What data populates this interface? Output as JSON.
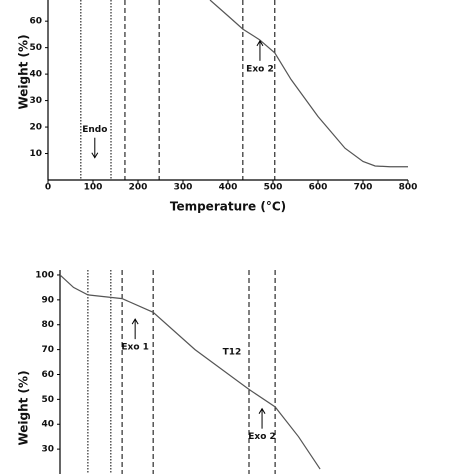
{
  "chart_data": [
    {
      "type": "line",
      "y_label": "Weight (%)",
      "x_label": "Temperature (°C)",
      "xlim": [
        0,
        800
      ],
      "xticks": [
        0,
        100,
        200,
        300,
        400,
        500,
        600,
        700,
        800
      ],
      "ylim": [
        0,
        68
      ],
      "yticks": [
        10,
        20,
        30,
        40,
        50,
        60
      ],
      "color": "#555555",
      "x": [
        360,
        400,
        433,
        470,
        504,
        540,
        600,
        660,
        700,
        727,
        760,
        800
      ],
      "values": [
        68,
        62,
        57,
        53,
        48,
        38,
        24,
        12,
        7,
        5.3,
        5,
        5
      ],
      "vlines": [
        {
          "x": 73,
          "style": "dotted"
        },
        {
          "x": 140,
          "style": "dotted"
        },
        {
          "x": 171,
          "style": "dashed"
        },
        {
          "x": 247,
          "style": "dashed"
        },
        {
          "x": 433,
          "style": "dashed"
        },
        {
          "x": 504,
          "style": "dashed"
        }
      ],
      "annotations": [
        {
          "text": "Endo",
          "x": 104,
          "y": 19,
          "arrow": "down"
        },
        {
          "text": "Exo 2",
          "x": 471,
          "y": 42,
          "arrow": "up"
        }
      ]
    },
    {
      "type": "line",
      "y_label": "Weight (%)",
      "xlim": [
        0,
        800
      ],
      "ylim": [
        20,
        102
      ],
      "yticks": [
        30,
        40,
        50,
        60,
        70,
        80,
        90,
        100
      ],
      "color": "#555555",
      "x": [
        0,
        30,
        62,
        138,
        207,
        300,
        420,
        478,
        530,
        578
      ],
      "values": [
        100,
        95,
        92,
        90.5,
        85,
        70,
        54,
        47,
        35,
        22
      ],
      "vlines": [
        {
          "x": 62,
          "style": "dotted"
        },
        {
          "x": 113,
          "style": "dotted"
        },
        {
          "x": 138,
          "style": "dashed"
        },
        {
          "x": 207,
          "style": "dashed"
        },
        {
          "x": 420,
          "style": "dashed"
        },
        {
          "x": 478,
          "style": "dashed"
        }
      ],
      "annotations": [
        {
          "text": "Exo 1",
          "x": 167,
          "y": 71,
          "arrow": "up"
        },
        {
          "text": "T12",
          "x": 382,
          "y": 69
        },
        {
          "text": "Exo 2",
          "x": 449,
          "y": 35,
          "arrow": "up"
        }
      ]
    }
  ]
}
